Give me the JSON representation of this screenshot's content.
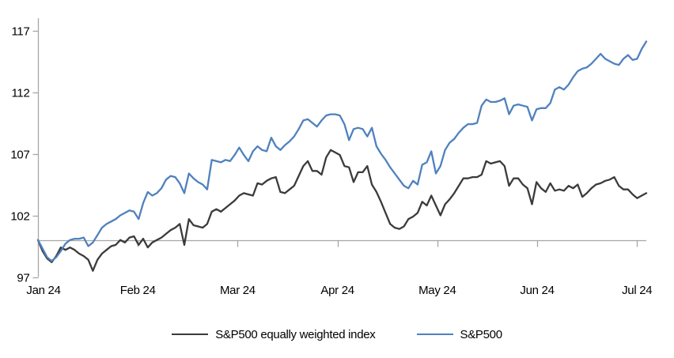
{
  "page": {
    "background": "#ffffff"
  },
  "chart_data": {
    "type": "line",
    "title": "",
    "x_tick_labels": [
      "Jan 24",
      "Feb 24",
      "Mar 24",
      "Apr 24",
      "May 24",
      "Jun 24",
      "Jul 24"
    ],
    "y_ticks": [
      97,
      102,
      107,
      112,
      117
    ],
    "ylim": [
      97,
      117
    ],
    "baseline_value": 100,
    "grid": false,
    "legend_position": "bottom-center",
    "axis_color": "#a6a6a6",
    "series": [
      {
        "name": "S&P500 equally weighted index",
        "color": "#3b3b3b",
        "values": [
          100.0,
          99.1,
          98.5,
          98.2,
          98.7,
          99.4,
          99.2,
          99.4,
          99.2,
          98.9,
          98.7,
          98.4,
          97.5,
          98.4,
          98.9,
          99.2,
          99.5,
          99.6,
          100.0,
          99.8,
          100.2,
          100.3,
          99.6,
          100.1,
          99.4,
          99.8,
          100.0,
          100.2,
          100.5,
          100.8,
          101.0,
          101.3,
          99.6,
          101.7,
          101.2,
          101.1,
          101.0,
          101.3,
          102.3,
          102.5,
          102.3,
          102.6,
          102.9,
          103.2,
          103.6,
          103.8,
          103.7,
          103.6,
          104.6,
          104.5,
          104.8,
          105.0,
          105.1,
          103.9,
          103.8,
          104.1,
          104.4,
          105.2,
          106.0,
          106.4,
          105.6,
          105.6,
          105.3,
          106.7,
          107.3,
          107.1,
          106.9,
          106.0,
          105.9,
          104.7,
          105.5,
          105.5,
          106.0,
          104.5,
          103.9,
          103.1,
          102.2,
          101.3,
          101.0,
          100.9,
          101.1,
          101.7,
          101.9,
          102.2,
          103.1,
          102.8,
          103.6,
          102.8,
          102.0,
          102.9,
          103.3,
          103.8,
          104.4,
          105.0,
          105.0,
          105.1,
          105.1,
          105.3,
          106.4,
          106.2,
          106.3,
          106.4,
          106.0,
          104.4,
          105.0,
          105.0,
          104.5,
          104.2,
          102.9,
          104.7,
          104.2,
          103.9,
          104.6,
          104.0,
          104.1,
          104.0,
          104.4,
          104.2,
          104.5,
          103.5,
          103.8,
          104.2,
          104.5,
          104.6,
          104.8,
          104.9,
          105.1,
          104.4,
          104.1,
          104.1,
          103.7,
          103.4,
          103.6,
          103.8
        ]
      },
      {
        "name": "S&P500",
        "color": "#4f81bd",
        "values": [
          100.0,
          99.3,
          98.6,
          98.3,
          98.6,
          99.1,
          99.7,
          100.0,
          100.1,
          100.1,
          100.2,
          99.5,
          99.8,
          100.4,
          101.0,
          101.3,
          101.5,
          101.7,
          102.0,
          102.2,
          102.4,
          102.3,
          101.7,
          103.0,
          103.9,
          103.6,
          103.8,
          104.2,
          104.9,
          105.2,
          105.1,
          104.6,
          103.8,
          105.4,
          105.0,
          104.7,
          104.5,
          104.1,
          106.5,
          106.4,
          106.3,
          106.5,
          106.4,
          106.9,
          107.5,
          106.9,
          106.4,
          107.2,
          107.6,
          107.3,
          107.2,
          108.3,
          107.6,
          107.3,
          107.7,
          108.0,
          108.4,
          109.0,
          109.7,
          109.8,
          109.5,
          109.2,
          109.7,
          110.1,
          110.2,
          110.2,
          110.1,
          109.4,
          108.1,
          109.0,
          109.1,
          109.0,
          108.4,
          109.1,
          107.6,
          107.0,
          106.5,
          105.9,
          105.4,
          104.9,
          104.4,
          104.2,
          104.8,
          104.5,
          106.1,
          106.3,
          107.2,
          105.4,
          106.0,
          107.3,
          107.9,
          108.2,
          108.7,
          109.1,
          109.4,
          109.4,
          109.5,
          110.9,
          111.4,
          111.2,
          111.2,
          111.3,
          111.5,
          110.2,
          110.9,
          111.0,
          110.9,
          110.8,
          109.7,
          110.6,
          110.7,
          110.7,
          111.1,
          112.2,
          112.4,
          112.2,
          112.6,
          113.2,
          113.7,
          113.9,
          114.0,
          114.3,
          114.7,
          115.1,
          114.7,
          114.5,
          114.3,
          114.2,
          114.7,
          115.0,
          114.6,
          114.7,
          115.5,
          116.1
        ]
      }
    ]
  }
}
